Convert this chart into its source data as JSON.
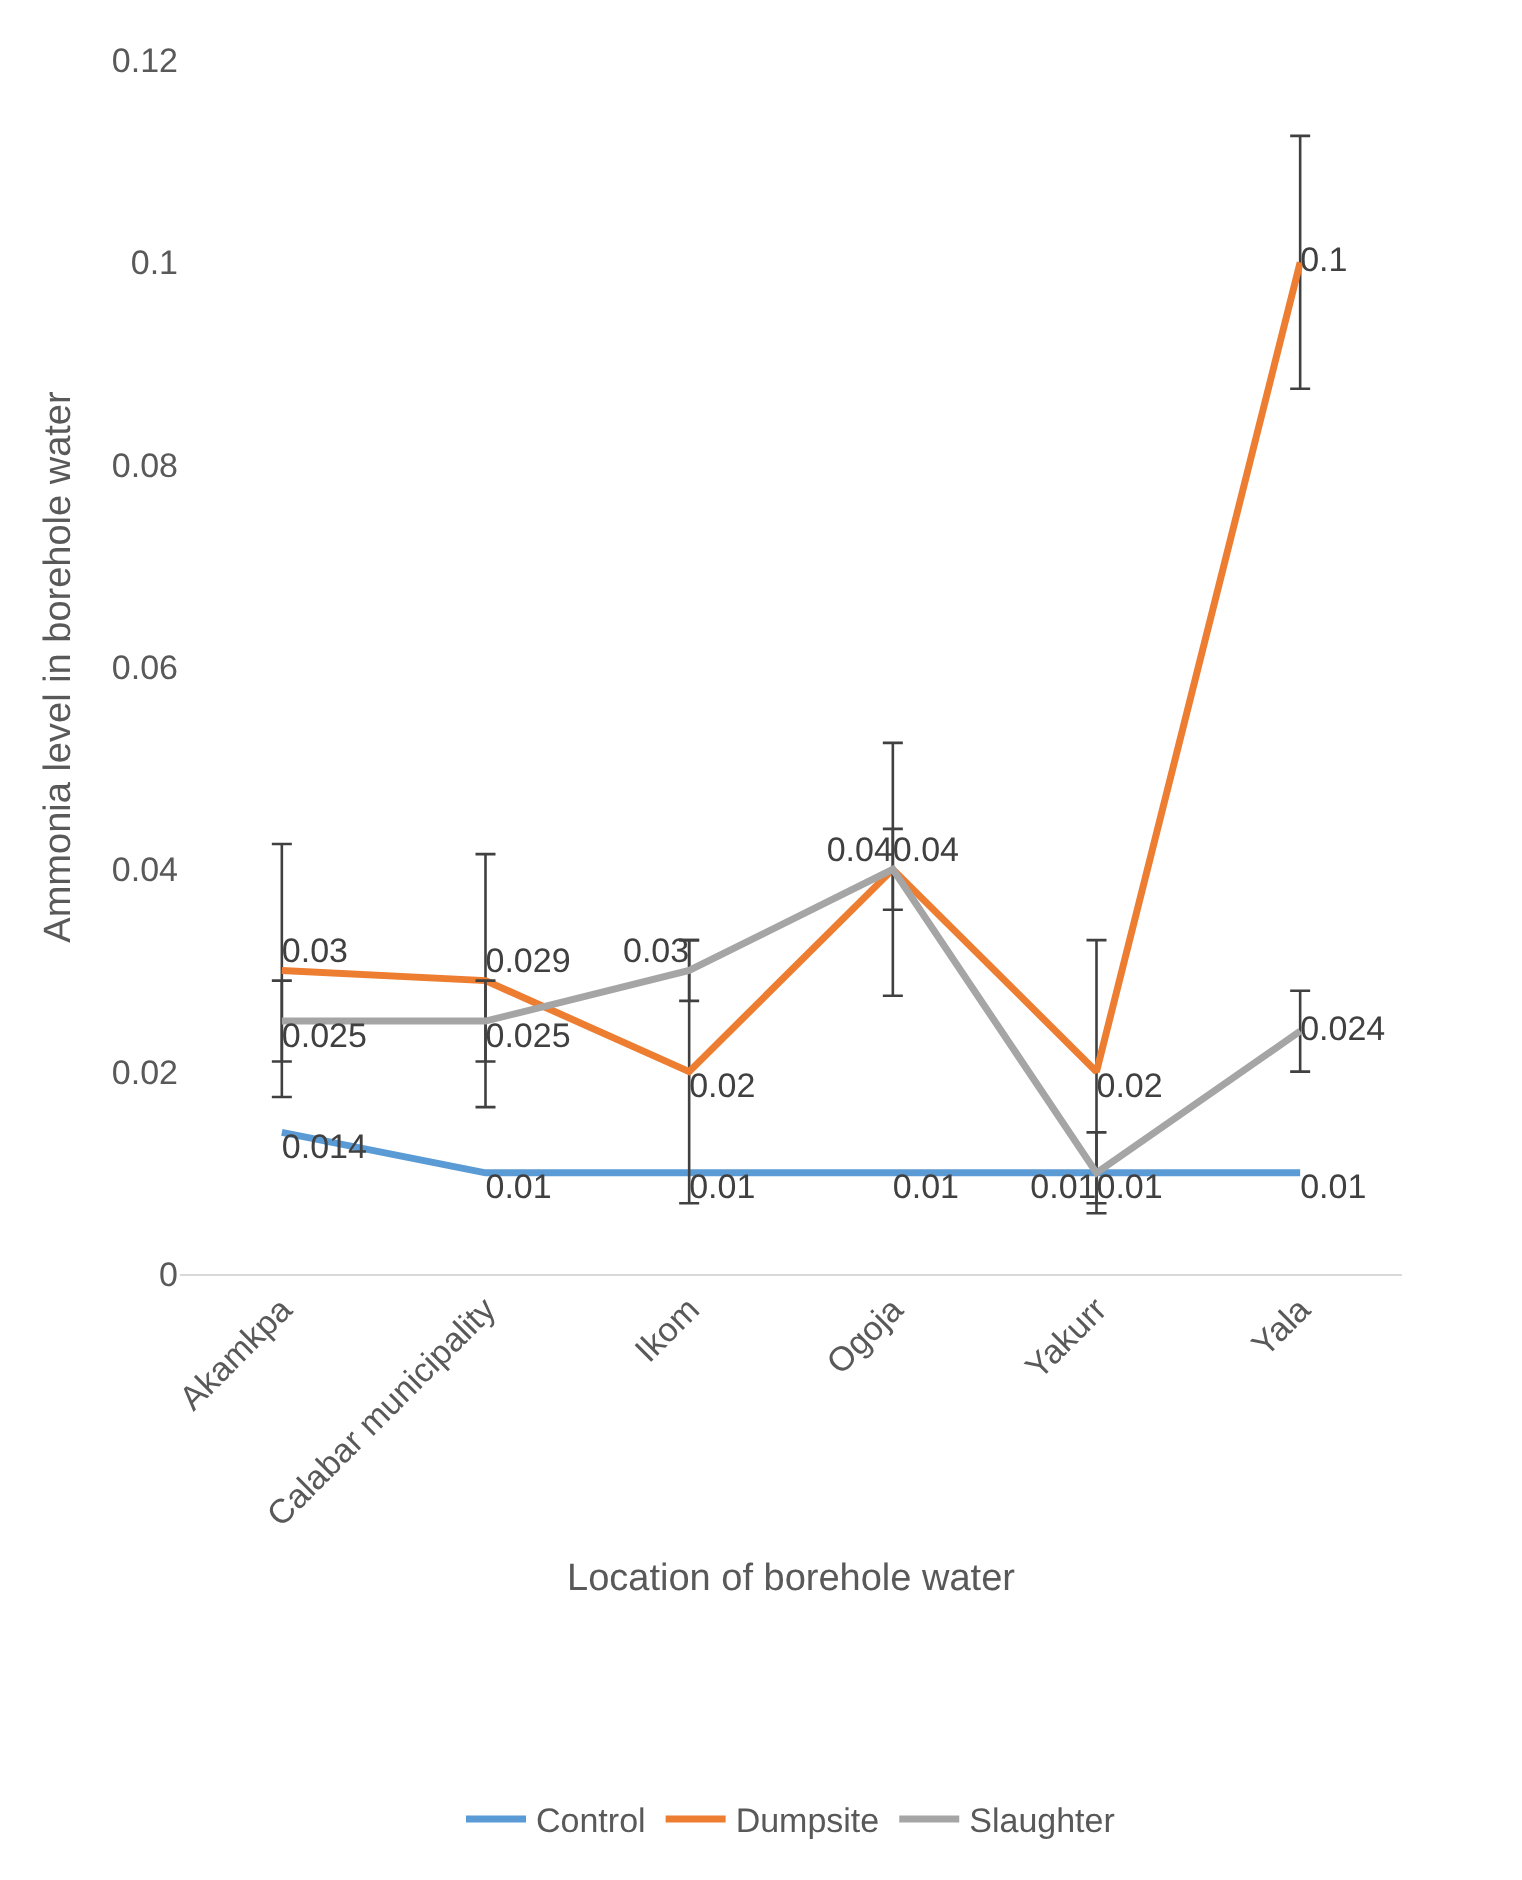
{
  "chart_data": {
    "type": "line",
    "xlabel": "Location of borehole water",
    "ylabel": "Ammonia level in borehole water",
    "categories": [
      "Akamkpa",
      "Calabar municipality",
      "Ikom",
      "Ogoja",
      "Yakurr",
      "Yala"
    ],
    "series": [
      {
        "name": "Control",
        "color": "#5b9bd5",
        "values": [
          0.014,
          0.01,
          0.01,
          0.01,
          0.01,
          0.01
        ]
      },
      {
        "name": "Dumpsite",
        "color": "#ed7d31",
        "values": [
          0.03,
          0.029,
          0.02,
          0.04,
          0.02,
          0.1
        ],
        "errors": [
          0.0125,
          0.0125,
          0.013,
          0.0125,
          0.013,
          0.0125
        ]
      },
      {
        "name": "Slaughter",
        "color": "#a5a5a5",
        "values": [
          0.025,
          0.025,
          0.03,
          0.04,
          0.01,
          0.024
        ],
        "errors": [
          0.004,
          0.004,
          0.003,
          0.004,
          0.004,
          0.004
        ]
      }
    ],
    "ylim": [
      0,
      0.12
    ],
    "yticks": [
      0,
      0.02,
      0.04,
      0.06,
      0.08,
      0.1,
      0.12
    ],
    "data_labels": true,
    "legend": "bottom",
    "grid": false,
    "marker": "none",
    "line_style": "solid"
  }
}
